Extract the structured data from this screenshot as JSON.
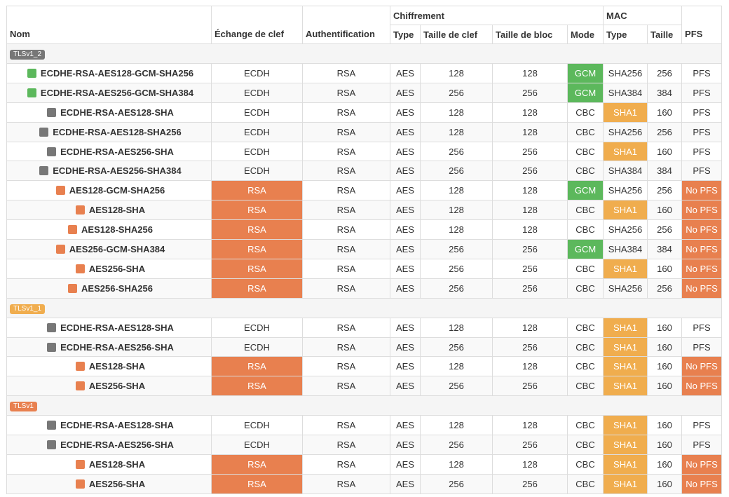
{
  "colors": {
    "good": "#5cb85c",
    "neutral": "#777777",
    "bad": "#e8804f",
    "warn": "#f0ad4e"
  },
  "headers": {
    "name": "Nom",
    "kex": "Échange de clef",
    "auth": "Authentification",
    "cipher_group": "Chiffrement",
    "cipher_type": "Type",
    "key_size": "Taille de clef",
    "block_size": "Taille de bloc",
    "mode": "Mode",
    "mac_group": "MAC",
    "mac_type": "Type",
    "mac_size": "Taille",
    "pfs": "PFS"
  },
  "groups": [
    {
      "label": "TLSv1_2",
      "badge_color": "neutral",
      "rows": [
        {
          "status": "good",
          "name": "ECDHE-RSA-AES128-GCM-SHA256",
          "kex": "ECDH",
          "auth": "RSA",
          "type": "AES",
          "key": "128",
          "block": "128",
          "mode": "GCM",
          "mac": "SHA256",
          "size": "256",
          "pfs": "PFS"
        },
        {
          "status": "good",
          "name": "ECDHE-RSA-AES256-GCM-SHA384",
          "kex": "ECDH",
          "auth": "RSA",
          "type": "AES",
          "key": "256",
          "block": "256",
          "mode": "GCM",
          "mac": "SHA384",
          "size": "384",
          "pfs": "PFS"
        },
        {
          "status": "neutral",
          "name": "ECDHE-RSA-AES128-SHA",
          "kex": "ECDH",
          "auth": "RSA",
          "type": "AES",
          "key": "128",
          "block": "128",
          "mode": "CBC",
          "mac": "SHA1",
          "size": "160",
          "pfs": "PFS"
        },
        {
          "status": "neutral",
          "name": "ECDHE-RSA-AES128-SHA256",
          "kex": "ECDH",
          "auth": "RSA",
          "type": "AES",
          "key": "128",
          "block": "128",
          "mode": "CBC",
          "mac": "SHA256",
          "size": "256",
          "pfs": "PFS"
        },
        {
          "status": "neutral",
          "name": "ECDHE-RSA-AES256-SHA",
          "kex": "ECDH",
          "auth": "RSA",
          "type": "AES",
          "key": "256",
          "block": "256",
          "mode": "CBC",
          "mac": "SHA1",
          "size": "160",
          "pfs": "PFS"
        },
        {
          "status": "neutral",
          "name": "ECDHE-RSA-AES256-SHA384",
          "kex": "ECDH",
          "auth": "RSA",
          "type": "AES",
          "key": "256",
          "block": "256",
          "mode": "CBC",
          "mac": "SHA384",
          "size": "384",
          "pfs": "PFS"
        },
        {
          "status": "bad",
          "name": "AES128-GCM-SHA256",
          "kex": "RSA",
          "auth": "RSA",
          "type": "AES",
          "key": "128",
          "block": "128",
          "mode": "GCM",
          "mac": "SHA256",
          "size": "256",
          "pfs": "No PFS"
        },
        {
          "status": "bad",
          "name": "AES128-SHA",
          "kex": "RSA",
          "auth": "RSA",
          "type": "AES",
          "key": "128",
          "block": "128",
          "mode": "CBC",
          "mac": "SHA1",
          "size": "160",
          "pfs": "No PFS"
        },
        {
          "status": "bad",
          "name": "AES128-SHA256",
          "kex": "RSA",
          "auth": "RSA",
          "type": "AES",
          "key": "128",
          "block": "128",
          "mode": "CBC",
          "mac": "SHA256",
          "size": "256",
          "pfs": "No PFS"
        },
        {
          "status": "bad",
          "name": "AES256-GCM-SHA384",
          "kex": "RSA",
          "auth": "RSA",
          "type": "AES",
          "key": "256",
          "block": "256",
          "mode": "GCM",
          "mac": "SHA384",
          "size": "384",
          "pfs": "No PFS"
        },
        {
          "status": "bad",
          "name": "AES256-SHA",
          "kex": "RSA",
          "auth": "RSA",
          "type": "AES",
          "key": "256",
          "block": "256",
          "mode": "CBC",
          "mac": "SHA1",
          "size": "160",
          "pfs": "No PFS"
        },
        {
          "status": "bad",
          "name": "AES256-SHA256",
          "kex": "RSA",
          "auth": "RSA",
          "type": "AES",
          "key": "256",
          "block": "256",
          "mode": "CBC",
          "mac": "SHA256",
          "size": "256",
          "pfs": "No PFS"
        }
      ]
    },
    {
      "label": "TLSv1_1",
      "badge_color": "warn",
      "rows": [
        {
          "status": "neutral",
          "name": "ECDHE-RSA-AES128-SHA",
          "kex": "ECDH",
          "auth": "RSA",
          "type": "AES",
          "key": "128",
          "block": "128",
          "mode": "CBC",
          "mac": "SHA1",
          "size": "160",
          "pfs": "PFS"
        },
        {
          "status": "neutral",
          "name": "ECDHE-RSA-AES256-SHA",
          "kex": "ECDH",
          "auth": "RSA",
          "type": "AES",
          "key": "256",
          "block": "256",
          "mode": "CBC",
          "mac": "SHA1",
          "size": "160",
          "pfs": "PFS"
        },
        {
          "status": "bad",
          "name": "AES128-SHA",
          "kex": "RSA",
          "auth": "RSA",
          "type": "AES",
          "key": "128",
          "block": "128",
          "mode": "CBC",
          "mac": "SHA1",
          "size": "160",
          "pfs": "No PFS"
        },
        {
          "status": "bad",
          "name": "AES256-SHA",
          "kex": "RSA",
          "auth": "RSA",
          "type": "AES",
          "key": "256",
          "block": "256",
          "mode": "CBC",
          "mac": "SHA1",
          "size": "160",
          "pfs": "No PFS"
        }
      ]
    },
    {
      "label": "TLSv1",
      "badge_color": "bad",
      "rows": [
        {
          "status": "neutral",
          "name": "ECDHE-RSA-AES128-SHA",
          "kex": "ECDH",
          "auth": "RSA",
          "type": "AES",
          "key": "128",
          "block": "128",
          "mode": "CBC",
          "mac": "SHA1",
          "size": "160",
          "pfs": "PFS"
        },
        {
          "status": "neutral",
          "name": "ECDHE-RSA-AES256-SHA",
          "kex": "ECDH",
          "auth": "RSA",
          "type": "AES",
          "key": "256",
          "block": "256",
          "mode": "CBC",
          "mac": "SHA1",
          "size": "160",
          "pfs": "PFS"
        },
        {
          "status": "bad",
          "name": "AES128-SHA",
          "kex": "RSA",
          "auth": "RSA",
          "type": "AES",
          "key": "128",
          "block": "128",
          "mode": "CBC",
          "mac": "SHA1",
          "size": "160",
          "pfs": "No PFS"
        },
        {
          "status": "bad",
          "name": "AES256-SHA",
          "kex": "RSA",
          "auth": "RSA",
          "type": "AES",
          "key": "256",
          "block": "256",
          "mode": "CBC",
          "mac": "SHA1",
          "size": "160",
          "pfs": "No PFS"
        }
      ]
    }
  ]
}
